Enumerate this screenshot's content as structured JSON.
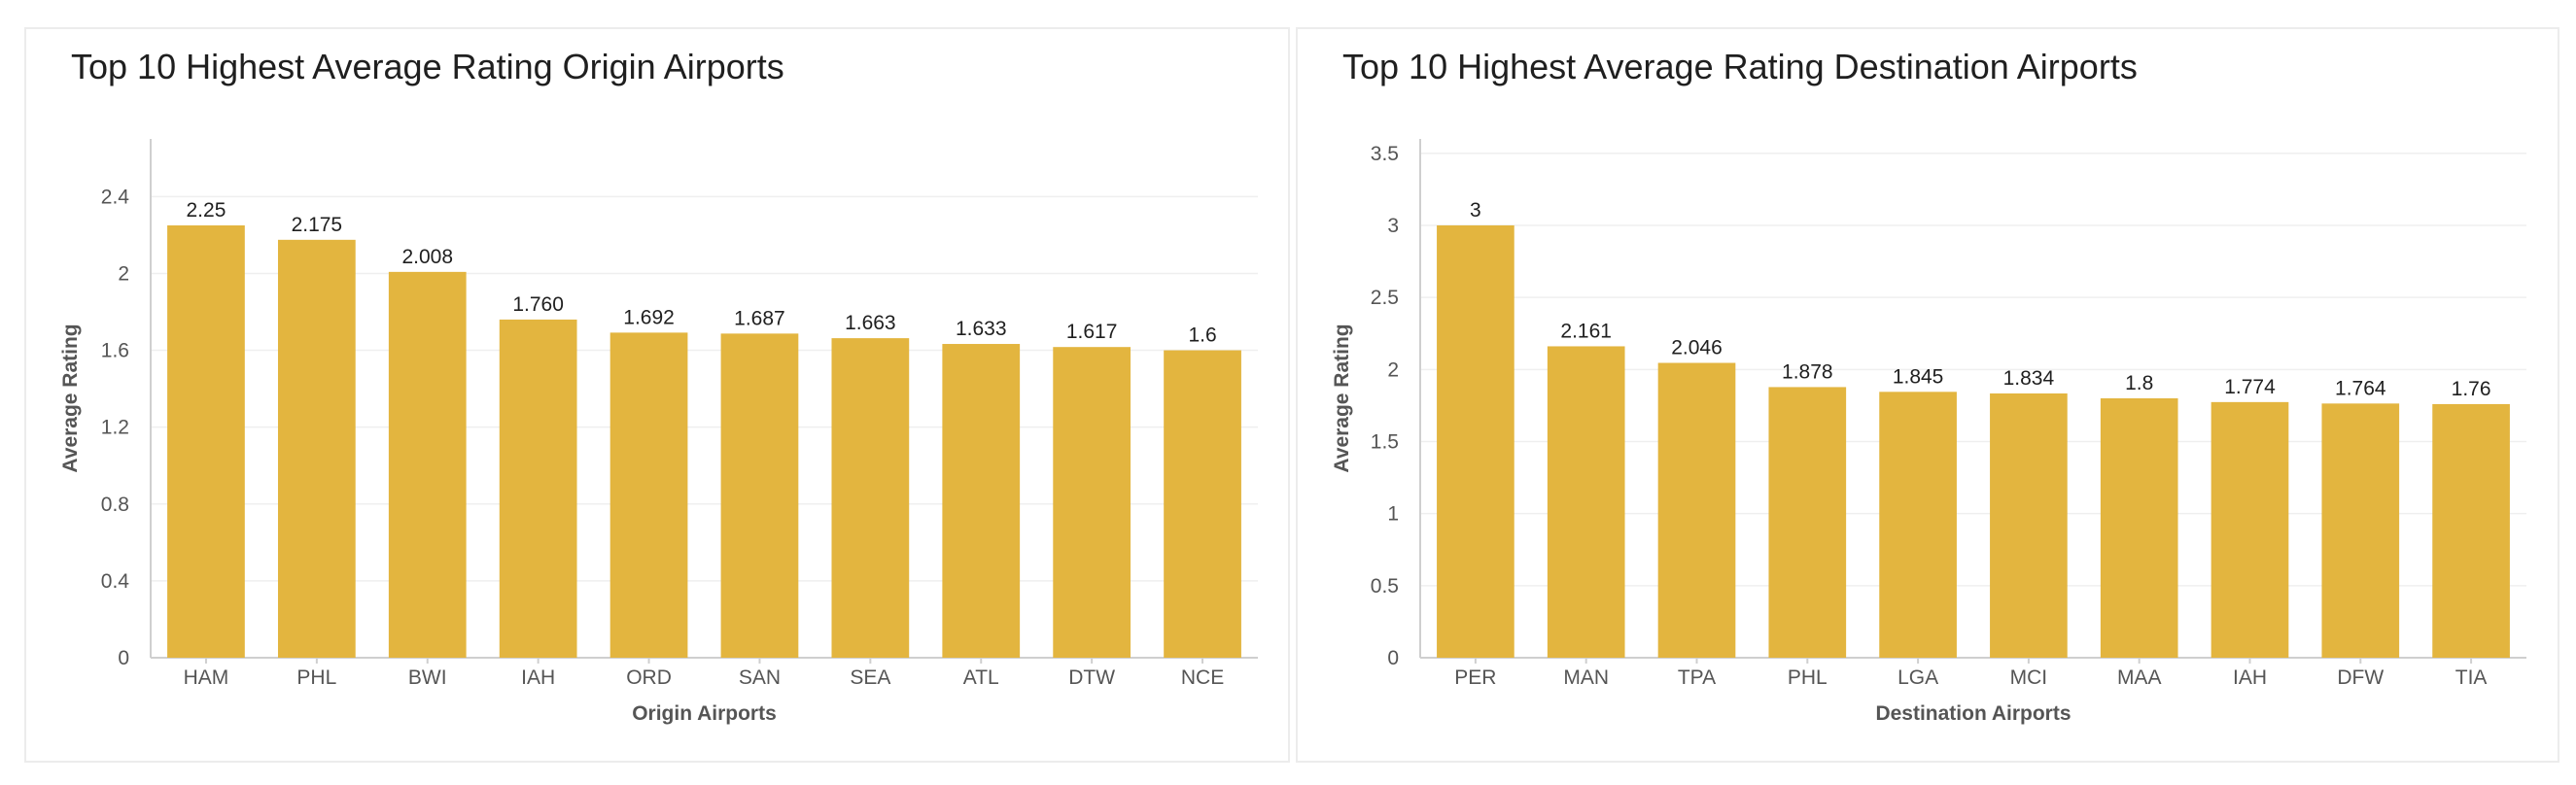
{
  "chart_data": [
    {
      "type": "bar",
      "title": "Top 10 Highest Average Rating Origin Airports",
      "xlabel": "Origin Airports",
      "ylabel": "Average Rating",
      "categories": [
        "HAM",
        "PHL",
        "BWI",
        "IAH",
        "ORD",
        "SAN",
        "SEA",
        "ATL",
        "DTW",
        "NCE"
      ],
      "values": [
        2.25,
        2.175,
        2.008,
        1.76,
        1.692,
        1.687,
        1.663,
        1.633,
        1.617,
        1.6
      ],
      "value_labels": [
        "2.25",
        "2.175",
        "2.008",
        "1.760",
        "1.692",
        "1.687",
        "1.663",
        "1.633",
        "1.617",
        "1.6"
      ],
      "y_ticks": [
        "0",
        "0.4",
        "0.8",
        "1.2",
        "1.6",
        "2",
        "2.4"
      ],
      "ylim": [
        0,
        2.7
      ],
      "grid": true,
      "legend": "none",
      "bar_color": "#E3B53F"
    },
    {
      "type": "bar",
      "title": "Top 10 Highest Average Rating Destination Airports",
      "xlabel": "Destination Airports",
      "ylabel": "Average Rating",
      "categories": [
        "PER",
        "MAN",
        "TPA",
        "PHL",
        "LGA",
        "MCI",
        "MAA",
        "IAH",
        "DFW",
        "TIA"
      ],
      "values": [
        3,
        2.161,
        2.046,
        1.878,
        1.845,
        1.834,
        1.8,
        1.774,
        1.764,
        1.76
      ],
      "value_labels": [
        "3",
        "2.161",
        "2.046",
        "1.878",
        "1.845",
        "1.834",
        "1.8",
        "1.774",
        "1.764",
        "1.76"
      ],
      "y_ticks": [
        "0",
        "0.5",
        "1",
        "1.5",
        "2",
        "2.5",
        "3",
        "3.5"
      ],
      "ylim": [
        0,
        3.6
      ],
      "grid": true,
      "legend": "none",
      "bar_color": "#E3B53F"
    }
  ]
}
